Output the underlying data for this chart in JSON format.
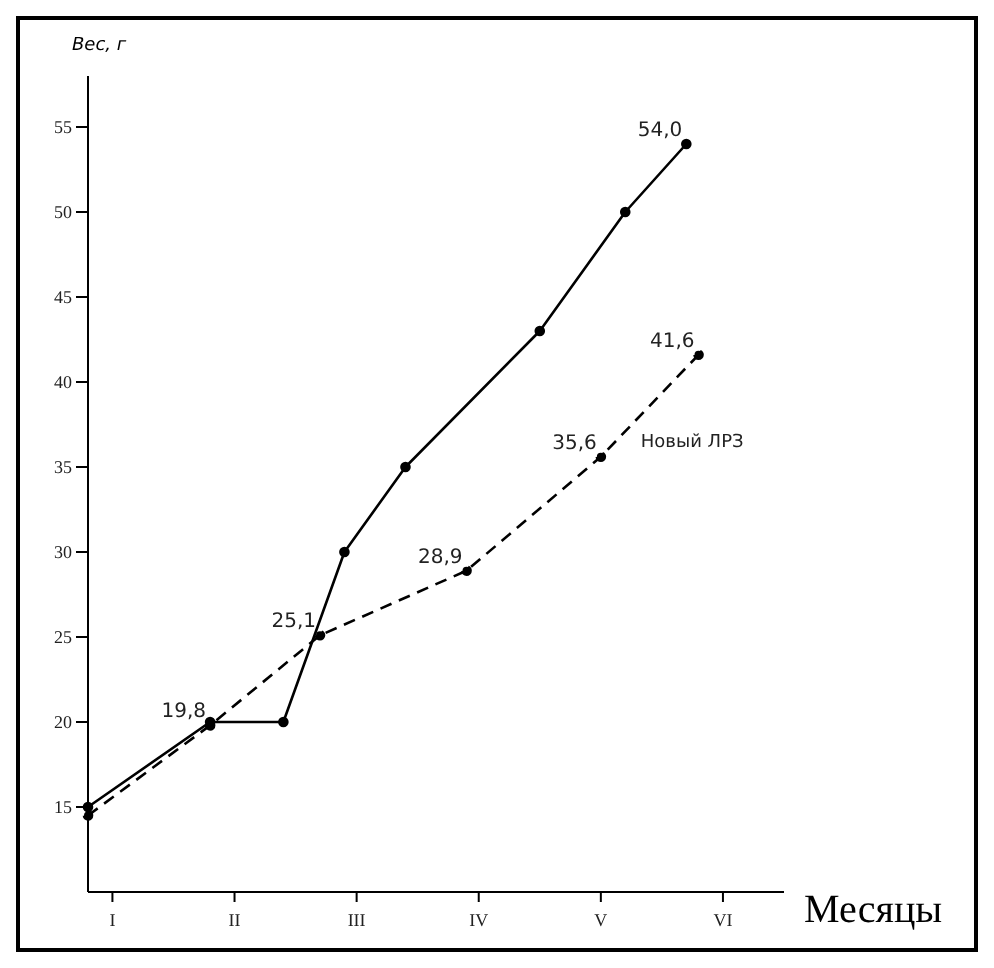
{
  "chart_data": {
    "type": "line",
    "xlabel": "Месяцы",
    "ylabel": "Вес, г",
    "categories": [
      null,
      null,
      "I",
      null,
      null,
      null,
      null,
      null,
      null,
      null,
      null,
      null,
      "II",
      null,
      null,
      null,
      null,
      null,
      null,
      null,
      null,
      null,
      "III",
      null,
      null,
      null,
      null,
      null,
      null,
      null,
      null,
      null,
      "IV",
      null,
      null,
      null,
      null,
      null,
      null,
      null,
      null,
      null,
      "V",
      null,
      null,
      null,
      null,
      null,
      null,
      null,
      null,
      null,
      "VI",
      null,
      null,
      null,
      null,
      null
    ],
    "ylim": [
      10,
      58
    ],
    "yticks": [
      15,
      20,
      25,
      30,
      35,
      40,
      45,
      50,
      55
    ],
    "grid": false,
    "legend": false,
    "marker": "circle",
    "series": [
      {
        "color": "#000000",
        "line_style": "solid",
        "values": [
          15,
          null,
          null,
          null,
          null,
          null,
          null,
          null,
          null,
          null,
          20,
          null,
          null,
          null,
          null,
          null,
          20,
          null,
          null,
          null,
          null,
          30,
          null,
          null,
          null,
          null,
          35,
          null,
          null,
          null,
          null,
          null,
          null,
          null,
          null,
          null,
          null,
          43,
          null,
          null,
          null,
          null,
          null,
          null,
          50,
          null,
          null,
          null,
          null,
          54,
          null,
          null,
          null,
          null,
          null,
          null,
          null,
          null
        ],
        "value_labels": [
          null,
          null,
          null,
          null,
          null,
          null,
          null,
          null,
          null,
          null,
          null,
          null,
          null,
          null,
          null,
          null,
          null,
          null,
          null,
          null,
          null,
          null,
          null,
          null,
          null,
          null,
          null,
          null,
          null,
          null,
          null,
          null,
          null,
          null,
          null,
          null,
          null,
          null,
          null,
          null,
          null,
          null,
          null,
          null,
          null,
          null,
          null,
          null,
          null,
          "54,0",
          null,
          null,
          null,
          null,
          null,
          null,
          null,
          null
        ]
      },
      {
        "name": "Новый ЛРЗ",
        "color": "#000000",
        "line_style": "dashed",
        "values": [
          14.5,
          null,
          null,
          null,
          null,
          null,
          null,
          null,
          null,
          null,
          19.8,
          null,
          null,
          null,
          null,
          null,
          null,
          null,
          null,
          25.1,
          null,
          null,
          null,
          null,
          null,
          null,
          null,
          null,
          null,
          null,
          null,
          28.9,
          null,
          null,
          null,
          null,
          null,
          null,
          null,
          null,
          null,
          null,
          35.6,
          null,
          null,
          null,
          null,
          null,
          null,
          null,
          41.6,
          null,
          null,
          null,
          null,
          null,
          null,
          null
        ],
        "value_labels": [
          null,
          null,
          null,
          null,
          null,
          null,
          null,
          null,
          null,
          null,
          "19,8",
          null,
          null,
          null,
          null,
          null,
          null,
          null,
          null,
          "25,1",
          null,
          null,
          null,
          null,
          null,
          null,
          null,
          null,
          null,
          null,
          null,
          "28,9",
          null,
          null,
          null,
          null,
          null,
          null,
          null,
          null,
          null,
          null,
          "35,6",
          null,
          null,
          null,
          null,
          null,
          null,
          null,
          "41,6",
          null,
          null,
          null,
          null,
          null,
          null,
          null
        ]
      }
    ]
  }
}
